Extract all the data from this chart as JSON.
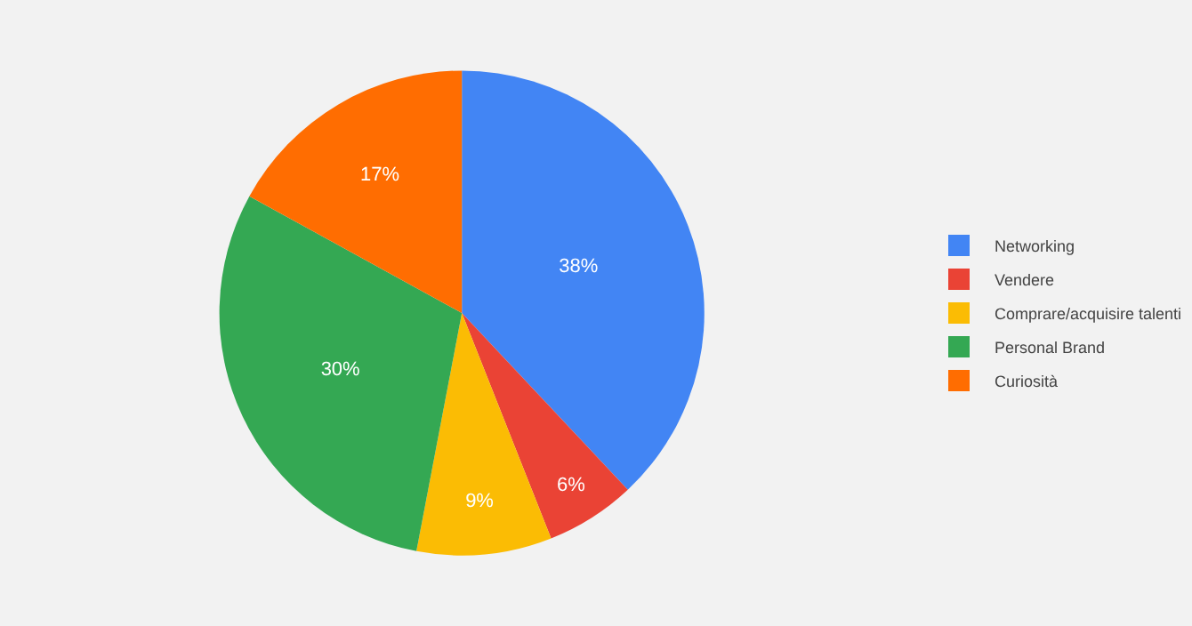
{
  "chart_data": {
    "type": "pie",
    "categories": [
      "Networking",
      "Vendere",
      "Comprare/acquisire talenti",
      "Personal Brand",
      "Curiosità"
    ],
    "values": [
      38,
      6,
      9,
      30,
      17
    ],
    "value_labels": [
      "38%",
      "6%",
      "9%",
      "30%",
      "17%"
    ],
    "colors": [
      "#4285f4",
      "#ea4335",
      "#fbbc04",
      "#34a853",
      "#ff6d01"
    ],
    "legend": "right"
  }
}
